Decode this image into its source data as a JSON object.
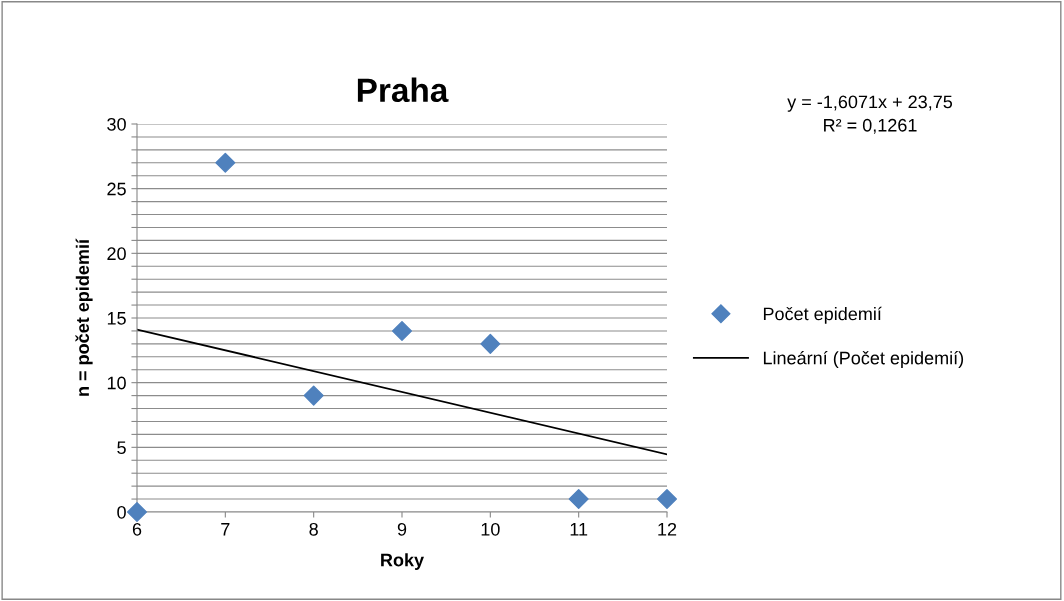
{
  "chart_data": {
    "type": "scatter",
    "title": "Praha",
    "xlabel": "Roky",
    "ylabel": "n = počet epidemií",
    "annotations": [
      "y = -1,6071x + 23,75\nR² = 0,1261"
    ],
    "series": [
      {
        "name": "Počet epidemií",
        "color": "#4f81bd",
        "marker": "diamond",
        "x": [
          6,
          7,
          8,
          9,
          10,
          11,
          12
        ],
        "values": [
          0,
          27,
          9,
          14,
          13,
          1,
          1
        ]
      },
      {
        "name": "Lineární (Počet epidemií)",
        "type": "line",
        "color": "#000000",
        "marker": "none",
        "line_style": "solid",
        "x": [
          6,
          12
        ],
        "values": [
          14.11,
          4.46
        ]
      }
    ],
    "xlim": [
      6,
      12
    ],
    "xticks": [
      6,
      7,
      8,
      9,
      10,
      11,
      12
    ],
    "ylim": [
      0,
      30
    ],
    "yticks": [
      0,
      {
        "value": 1,
        "label": null
      },
      {
        "value": 2,
        "label": null
      },
      {
        "value": 3,
        "label": null
      },
      {
        "value": 4,
        "label": null
      },
      5,
      {
        "value": 6,
        "label": null
      },
      {
        "value": 7,
        "label": null
      },
      {
        "value": 8,
        "label": null
      },
      {
        "value": 9,
        "label": null
      },
      10,
      {
        "value": 11,
        "label": null
      },
      {
        "value": 12,
        "label": null
      },
      {
        "value": 13,
        "label": null
      },
      {
        "value": 14,
        "label": null
      },
      15,
      {
        "value": 16,
        "label": null
      },
      {
        "value": 17,
        "label": null
      },
      {
        "value": 18,
        "label": null
      },
      {
        "value": 19,
        "label": null
      },
      20,
      {
        "value": 21,
        "label": null
      },
      {
        "value": 22,
        "label": null
      },
      {
        "value": 23,
        "label": null
      },
      {
        "value": 24,
        "label": null
      },
      25,
      {
        "value": 26,
        "label": null
      },
      {
        "value": 27,
        "label": null
      },
      {
        "value": 28,
        "label": null
      },
      {
        "value": 29,
        "label": null
      },
      30
    ],
    "grid": "y",
    "legend": "right"
  }
}
